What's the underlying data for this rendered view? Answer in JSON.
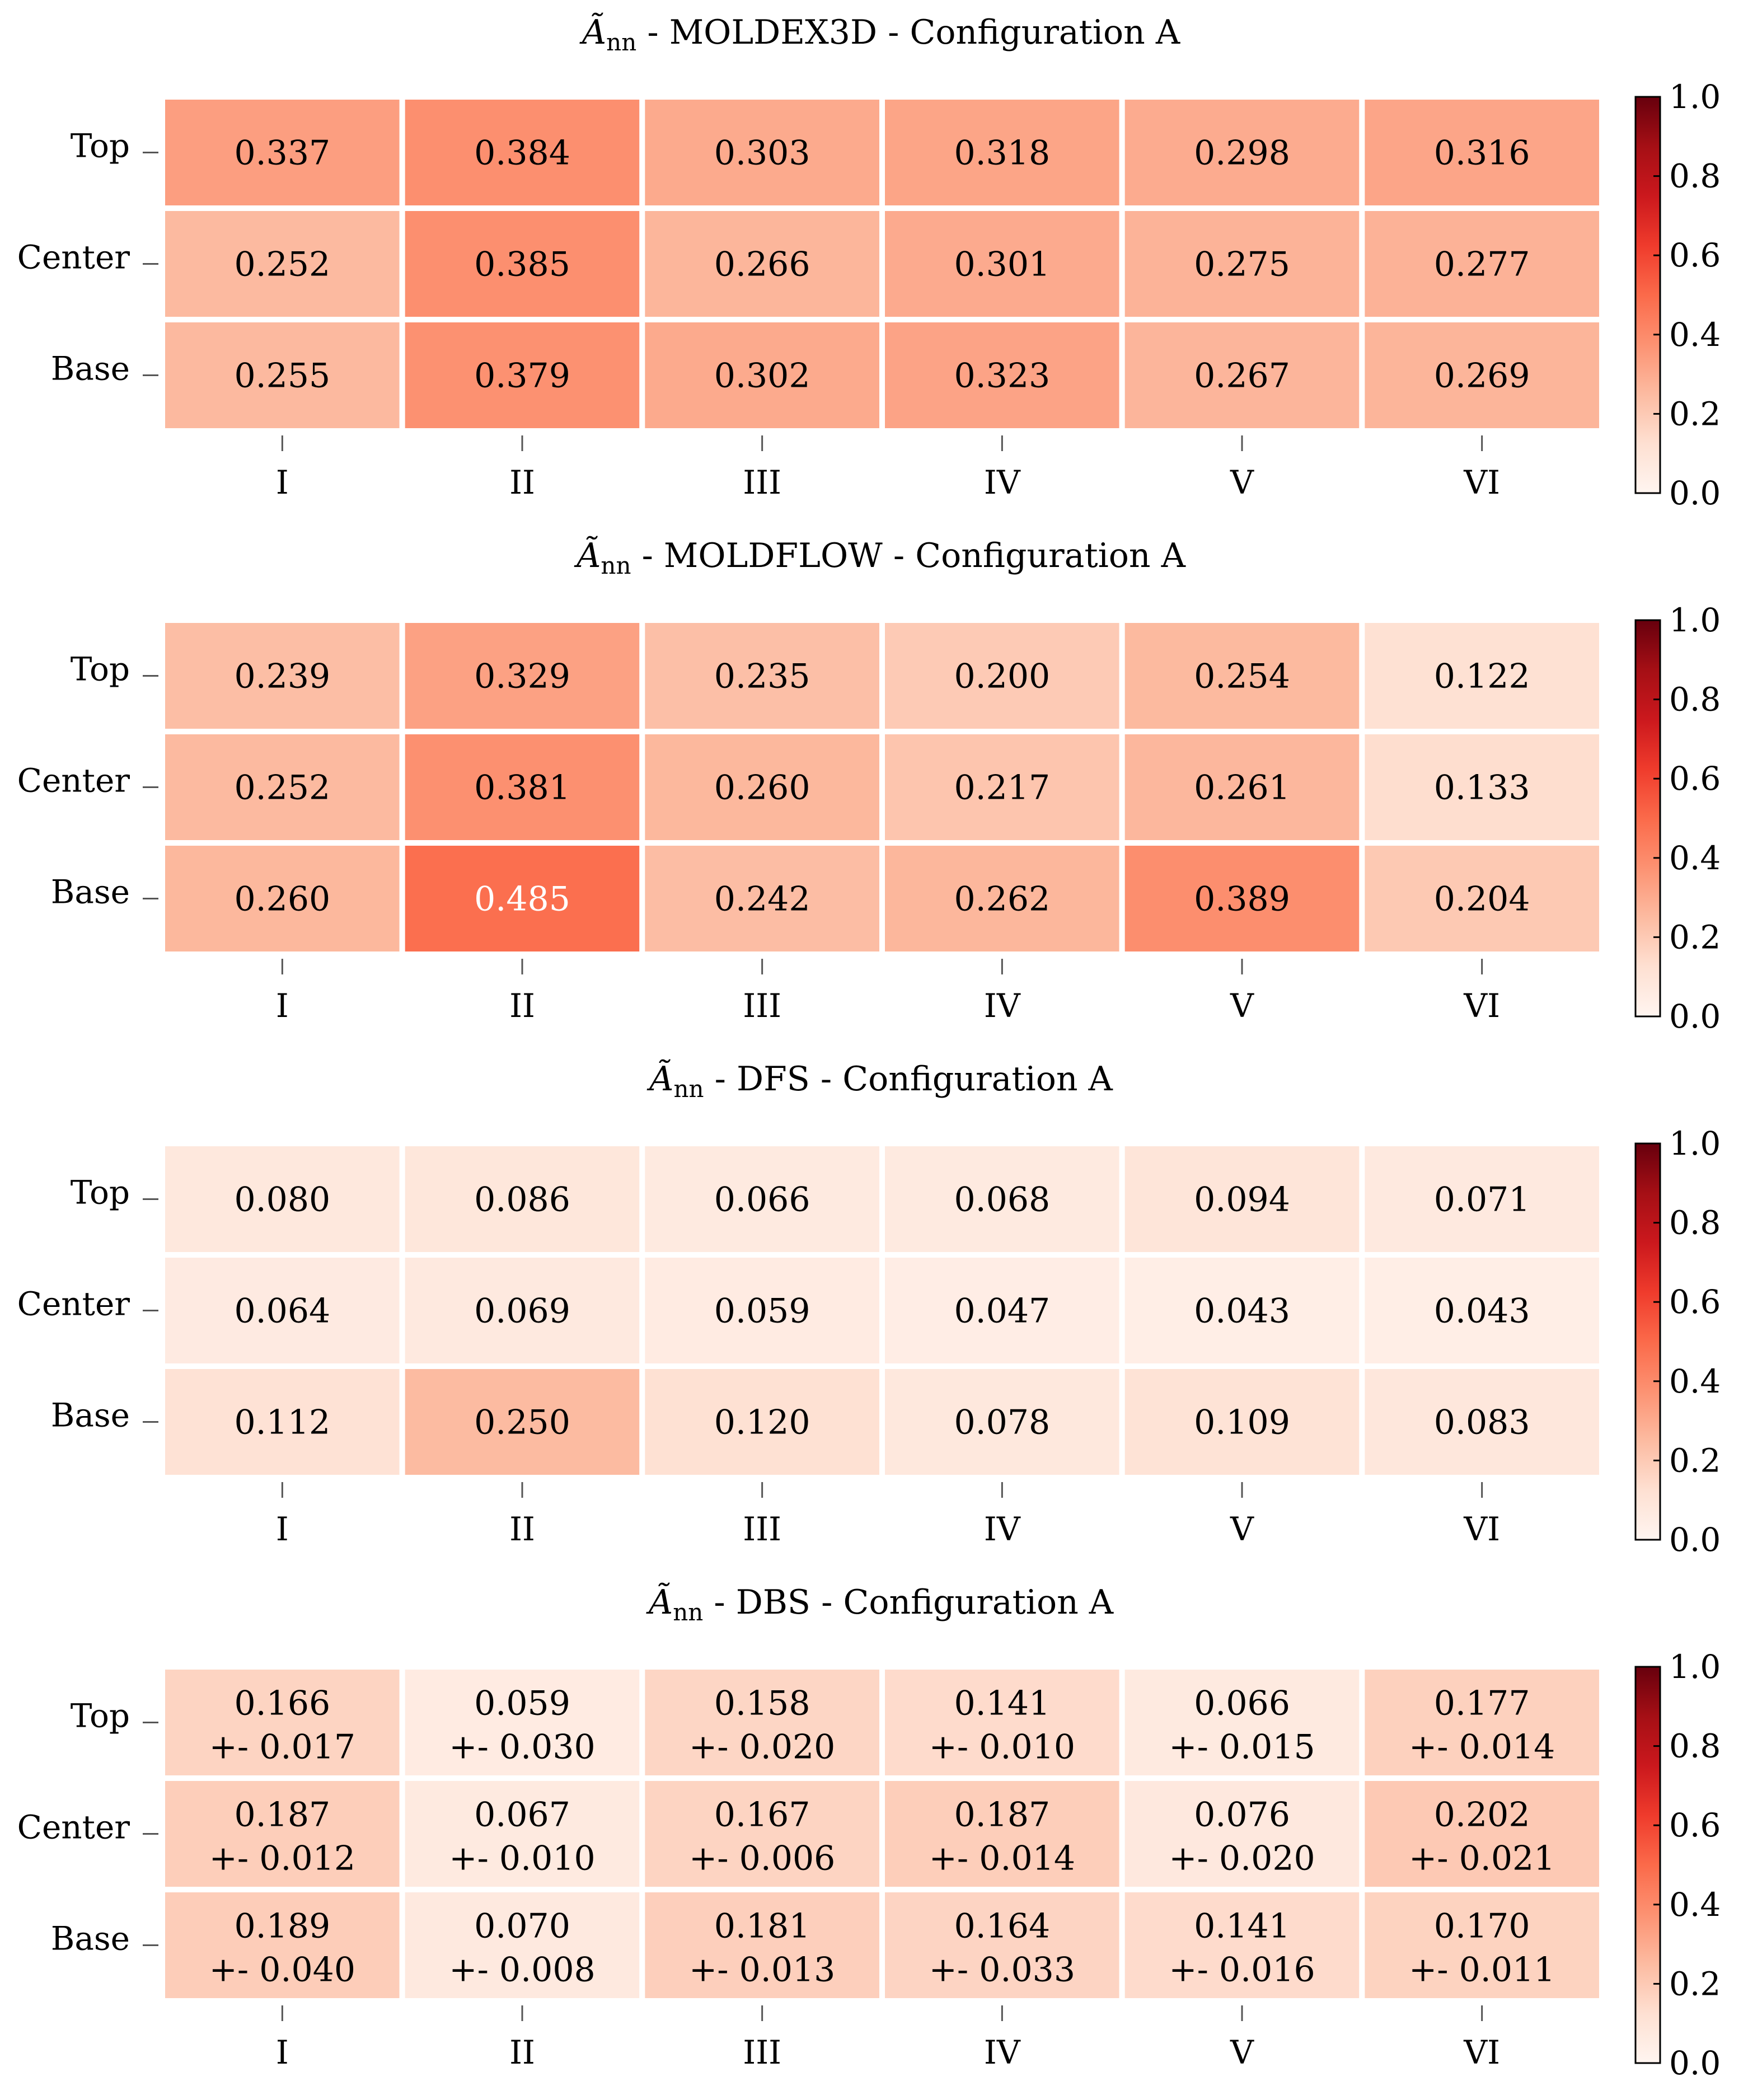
{
  "colors": {
    "map_low": "#fff5f0",
    "map_stops": [
      "#fff5f0",
      "#fee0d2",
      "#fcbba1",
      "#fc9272",
      "#fb6a4a",
      "#ef3b2c",
      "#cb181d",
      "#a50f15",
      "#67000d"
    ],
    "text_dark": "#000000",
    "text_light": "#ffffff",
    "cell_border": "#ffffff"
  },
  "chart_data": [
    {
      "type": "heatmap",
      "title_symbol": "Ã",
      "title_subscript": "nn",
      "title_rest": " - MOLDEX3D - Configuration A",
      "x_categories": [
        "I",
        "II",
        "III",
        "IV",
        "V",
        "VI"
      ],
      "y_categories": [
        "Top",
        "Center",
        "Base"
      ],
      "values": [
        [
          0.337,
          0.384,
          0.303,
          0.318,
          0.298,
          0.316
        ],
        [
          0.252,
          0.385,
          0.266,
          0.301,
          0.275,
          0.277
        ],
        [
          0.255,
          0.379,
          0.302,
          0.323,
          0.267,
          0.269
        ]
      ],
      "value_labels": [
        [
          "0.337",
          "0.384",
          "0.303",
          "0.318",
          "0.298",
          "0.316"
        ],
        [
          "0.252",
          "0.385",
          "0.266",
          "0.301",
          "0.275",
          "0.277"
        ],
        [
          "0.255",
          "0.379",
          "0.302",
          "0.323",
          "0.267",
          "0.269"
        ]
      ],
      "colorbar": {
        "range": [
          0.0,
          1.0
        ],
        "ticks": [
          "0.0",
          "0.2",
          "0.4",
          "0.6",
          "0.8",
          "1.0"
        ]
      }
    },
    {
      "type": "heatmap",
      "title_symbol": "Ã",
      "title_subscript": "nn",
      "title_rest": " - MOLDFLOW - Configuration A",
      "x_categories": [
        "I",
        "II",
        "III",
        "IV",
        "V",
        "VI"
      ],
      "y_categories": [
        "Top",
        "Center",
        "Base"
      ],
      "values": [
        [
          0.239,
          0.329,
          0.235,
          0.2,
          0.254,
          0.122
        ],
        [
          0.252,
          0.381,
          0.26,
          0.217,
          0.261,
          0.133
        ],
        [
          0.26,
          0.485,
          0.242,
          0.262,
          0.389,
          0.204
        ]
      ],
      "value_labels": [
        [
          "0.239",
          "0.329",
          "0.235",
          "0.200",
          "0.254",
          "0.122"
        ],
        [
          "0.252",
          "0.381",
          "0.260",
          "0.217",
          "0.261",
          "0.133"
        ],
        [
          "0.260",
          "0.485",
          "0.242",
          "0.262",
          "0.389",
          "0.204"
        ]
      ],
      "colorbar": {
        "range": [
          0.0,
          1.0
        ],
        "ticks": [
          "0.0",
          "0.2",
          "0.4",
          "0.6",
          "0.8",
          "1.0"
        ]
      }
    },
    {
      "type": "heatmap",
      "title_symbol": "Ã",
      "title_subscript": "nn",
      "title_rest": " - DFS - Configuration A",
      "x_categories": [
        "I",
        "II",
        "III",
        "IV",
        "V",
        "VI"
      ],
      "y_categories": [
        "Top",
        "Center",
        "Base"
      ],
      "values": [
        [
          0.08,
          0.086,
          0.066,
          0.068,
          0.094,
          0.071
        ],
        [
          0.064,
          0.069,
          0.059,
          0.047,
          0.043,
          0.043
        ],
        [
          0.112,
          0.25,
          0.12,
          0.078,
          0.109,
          0.083
        ]
      ],
      "value_labels": [
        [
          "0.080",
          "0.086",
          "0.066",
          "0.068",
          "0.094",
          "0.071"
        ],
        [
          "0.064",
          "0.069",
          "0.059",
          "0.047",
          "0.043",
          "0.043"
        ],
        [
          "0.112",
          "0.250",
          "0.120",
          "0.078",
          "0.109",
          "0.083"
        ]
      ],
      "colorbar": {
        "range": [
          0.0,
          1.0
        ],
        "ticks": [
          "0.0",
          "0.2",
          "0.4",
          "0.6",
          "0.8",
          "1.0"
        ]
      }
    },
    {
      "type": "heatmap",
      "title_symbol": "Ã",
      "title_subscript": "nn",
      "title_rest": " - DBS - Configuration A",
      "x_categories": [
        "I",
        "II",
        "III",
        "IV",
        "V",
        "VI"
      ],
      "y_categories": [
        "Top",
        "Center",
        "Base"
      ],
      "values": [
        [
          0.166,
          0.059,
          0.158,
          0.141,
          0.066,
          0.177
        ],
        [
          0.187,
          0.067,
          0.167,
          0.187,
          0.076,
          0.202
        ],
        [
          0.189,
          0.07,
          0.181,
          0.164,
          0.141,
          0.17
        ]
      ],
      "value_labels": [
        [
          "0.166",
          "0.059",
          "0.158",
          "0.141",
          "0.066",
          "0.177"
        ],
        [
          "0.187",
          "0.067",
          "0.167",
          "0.187",
          "0.076",
          "0.202"
        ],
        [
          "0.189",
          "0.070",
          "0.181",
          "0.164",
          "0.141",
          "0.170"
        ]
      ],
      "error_labels": [
        [
          "+- 0.017",
          "+- 0.030",
          "+- 0.020",
          "+- 0.010",
          "+- 0.015",
          "+- 0.014"
        ],
        [
          "+- 0.012",
          "+- 0.010",
          "+- 0.006",
          "+- 0.014",
          "+- 0.020",
          "+- 0.021"
        ],
        [
          "+- 0.040",
          "+- 0.008",
          "+- 0.013",
          "+- 0.033",
          "+- 0.016",
          "+- 0.011"
        ]
      ],
      "colorbar": {
        "range": [
          0.0,
          1.0
        ],
        "ticks": [
          "0.0",
          "0.2",
          "0.4",
          "0.6",
          "0.8",
          "1.0"
        ]
      }
    }
  ]
}
